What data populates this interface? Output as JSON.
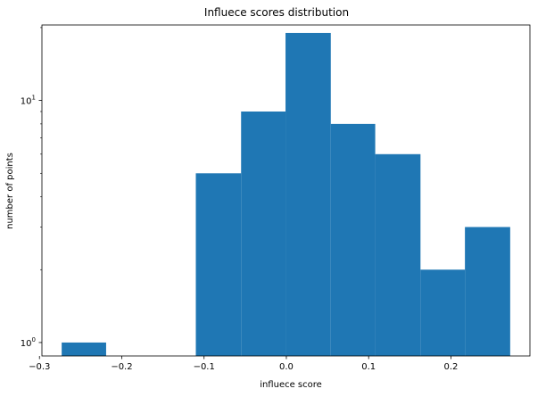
{
  "chart_data": {
    "type": "bar",
    "title": "Influece scores distribution",
    "xlabel": "influece score",
    "ylabel": "number of points",
    "yscale": "log",
    "xlim": [
      -0.297,
      0.296
    ],
    "ylim": [
      0.88,
      20.5
    ],
    "grid": false,
    "bar_color": "#1f77b4",
    "bins": [
      {
        "x0": -0.273,
        "x1": -0.219,
        "count": 1
      },
      {
        "x0": -0.219,
        "x1": -0.164,
        "count": 0
      },
      {
        "x0": -0.164,
        "x1": -0.11,
        "count": 0
      },
      {
        "x0": -0.11,
        "x1": -0.055,
        "count": 5
      },
      {
        "x0": -0.055,
        "x1": -0.001,
        "count": 9
      },
      {
        "x0": -0.001,
        "x1": 0.054,
        "count": 19
      },
      {
        "x0": 0.054,
        "x1": 0.108,
        "count": 8
      },
      {
        "x0": 0.108,
        "x1": 0.163,
        "count": 6
      },
      {
        "x0": 0.163,
        "x1": 0.217,
        "count": 2
      },
      {
        "x0": 0.217,
        "x1": 0.272,
        "count": 3
      }
    ],
    "x_ticks": [
      {
        "value": -0.3,
        "label": "−0.3"
      },
      {
        "value": -0.2,
        "label": "−0.2"
      },
      {
        "value": -0.1,
        "label": "−0.1"
      },
      {
        "value": 0.0,
        "label": "0.0"
      },
      {
        "value": 0.1,
        "label": "0.1"
      },
      {
        "value": 0.2,
        "label": "0.2"
      }
    ],
    "y_major_ticks": [
      {
        "value": 1,
        "label_base": "10",
        "label_exp": "0"
      },
      {
        "value": 10,
        "label_base": "10",
        "label_exp": "1"
      }
    ],
    "y_minor_ticks": [
      2,
      3,
      4,
      5,
      6,
      7,
      8,
      9,
      20
    ]
  }
}
